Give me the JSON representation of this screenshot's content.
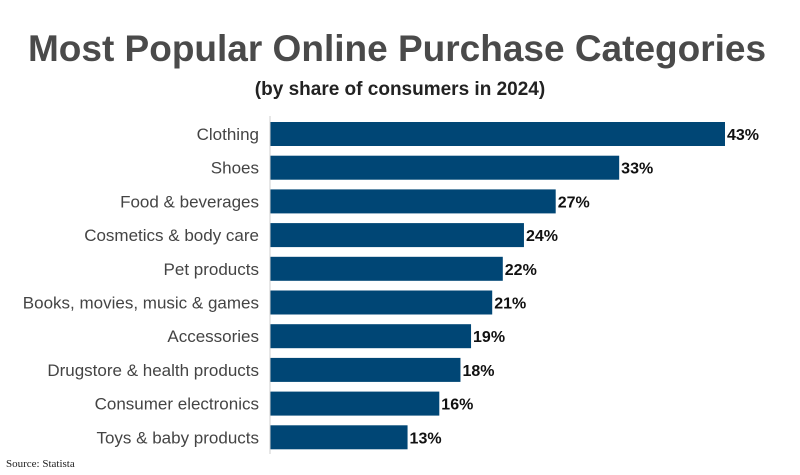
{
  "chart_data": {
    "type": "bar",
    "orientation": "horizontal",
    "title": "Most Popular Online Purchase Categories",
    "subtitle": "(by share of consumers in 2024)",
    "categories": [
      "Clothing",
      "Shoes",
      "Food & beverages",
      "Cosmetics & body care",
      "Pet products",
      "Books, movies, music & games",
      "Accessories",
      "Drugstore & health products",
      "Consumer electronics",
      "Toys & baby products"
    ],
    "values": [
      43,
      33,
      27,
      24,
      22,
      21,
      19,
      18,
      16,
      13
    ],
    "value_labels": [
      "43%",
      "33%",
      "27%",
      "24%",
      "22%",
      "21%",
      "19%",
      "18%",
      "16%",
      "13%"
    ],
    "unit": "%",
    "xlim": [
      0,
      43
    ],
    "bar_color": "#004675",
    "grid": false,
    "legend": "none"
  },
  "source": "Source: Statista"
}
